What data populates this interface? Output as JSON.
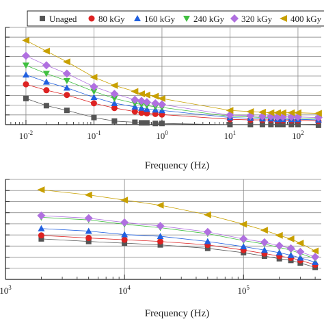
{
  "chart_data": [
    {
      "type": "scatter",
      "xlabel": "Frequency (Hz)",
      "ylabel": "",
      "xscale": "log",
      "xlim": [
        0.005,
        220
      ],
      "ylim": [
        0,
        8.2
      ],
      "grid": true,
      "legend_position": "top",
      "x_ticks": [
        {
          "value": 0.01,
          "base": "10",
          "exp": "-2"
        },
        {
          "value": 0.1,
          "base": "10",
          "exp": "-1"
        },
        {
          "value": 1,
          "base": "10",
          "exp": "0"
        },
        {
          "value": 10,
          "base": "10",
          "exp": "1"
        },
        {
          "value": 100,
          "base": "10",
          "exp": "2"
        }
      ],
      "x": [
        0.01,
        0.02,
        0.04,
        0.1,
        0.2,
        0.4,
        0.5,
        0.6,
        0.8,
        1,
        10,
        20,
        30,
        40,
        50,
        60,
        80,
        100,
        200
      ],
      "series": [
        {
          "name": "Unaged",
          "marker": "square",
          "color": "#555555",
          "values": [
            2.2,
            1.6,
            1.2,
            0.6,
            0.3,
            0.2,
            0.15,
            0.15,
            0.1,
            0.1,
            0,
            0,
            0,
            0,
            0,
            0,
            0,
            0,
            -0.05
          ]
        },
        {
          "name": "80 kGy",
          "marker": "circle",
          "color": "#dd2222",
          "values": [
            3.4,
            2.9,
            2.5,
            1.8,
            1.4,
            1.1,
            1.0,
            0.95,
            0.9,
            0.85,
            0.45,
            0.4,
            0.4,
            0.4,
            0.35,
            0.35,
            0.35,
            0.35,
            0.3
          ]
        },
        {
          "name": "160 kGy",
          "marker": "triangle-up",
          "color": "#2060e0",
          "values": [
            4.2,
            3.6,
            3.1,
            2.3,
            1.8,
            1.5,
            1.4,
            1.3,
            1.25,
            1.2,
            0.6,
            0.55,
            0.5,
            0.5,
            0.45,
            0.45,
            0.45,
            0.45,
            0.4
          ]
        },
        {
          "name": "240 kGy",
          "marker": "triangle-down",
          "color": "#40c040",
          "values": [
            5.0,
            4.3,
            3.7,
            2.8,
            2.2,
            1.8,
            1.7,
            1.6,
            1.5,
            1.45,
            0.7,
            0.65,
            0.6,
            0.6,
            0.55,
            0.55,
            0.55,
            0.55,
            0.5
          ]
        },
        {
          "name": "320 kGy",
          "marker": "diamond",
          "color": "#b070e0",
          "values": [
            5.8,
            5.0,
            4.3,
            3.2,
            2.6,
            2.1,
            2.0,
            1.9,
            1.8,
            1.7,
            0.8,
            0.75,
            0.7,
            0.7,
            0.65,
            0.65,
            0.65,
            0.65,
            0.6
          ]
        },
        {
          "name": "400 kGy",
          "marker": "triangle-left",
          "color": "#c8a000",
          "values": [
            7.1,
            6.2,
            5.3,
            4.0,
            3.3,
            2.8,
            2.6,
            2.5,
            2.4,
            2.2,
            1.2,
            1.1,
            1.05,
            1.0,
            1.0,
            1.0,
            1.0,
            1.0,
            0.95
          ]
        }
      ]
    },
    {
      "type": "scatter",
      "xlabel": "Frequency (Hz)",
      "ylabel": "",
      "xscale": "log",
      "xlim": [
        1000,
        450000
      ],
      "ylim": [
        0,
        5.8
      ],
      "grid": true,
      "x_ticks": [
        {
          "value": 1000,
          "base": "10",
          "exp": "3"
        },
        {
          "value": 10000,
          "base": "10",
          "exp": "4"
        },
        {
          "value": 100000,
          "base": "10",
          "exp": "5"
        }
      ],
      "x": [
        2000,
        5000,
        10000,
        20000,
        50000,
        100000,
        150000,
        200000,
        250000,
        300000,
        400000
      ],
      "series": [
        {
          "name": "Unaged",
          "marker": "square",
          "color": "#555555",
          "values": [
            2.35,
            2.2,
            2.1,
            2.0,
            1.8,
            1.55,
            1.35,
            1.2,
            1.1,
            0.95,
            0.7
          ]
        },
        {
          "name": "80 kGy",
          "marker": "circle",
          "color": "#dd2222",
          "values": [
            2.55,
            2.4,
            2.3,
            2.2,
            2.0,
            1.7,
            1.5,
            1.35,
            1.25,
            1.1,
            0.85
          ]
        },
        {
          "name": "160 kGy",
          "marker": "triangle-up",
          "color": "#2060e0",
          "values": [
            2.95,
            2.8,
            2.6,
            2.5,
            2.2,
            1.9,
            1.7,
            1.55,
            1.4,
            1.25,
            1.0
          ]
        },
        {
          "name": "240 kGy",
          "marker": "triangle-down",
          "color": "#40c040",
          "values": [
            3.6,
            3.45,
            3.2,
            3.0,
            2.65,
            2.25,
            2.05,
            1.85,
            1.7,
            1.5,
            1.2
          ]
        },
        {
          "name": "320 kGy",
          "marker": "diamond",
          "color": "#b070e0",
          "values": [
            3.7,
            3.55,
            3.3,
            3.1,
            2.75,
            2.35,
            2.15,
            1.95,
            1.8,
            1.6,
            1.3
          ]
        },
        {
          "name": "400 kGy",
          "marker": "triangle-left",
          "color": "#c8a000",
          "values": [
            5.2,
            4.9,
            4.6,
            4.3,
            3.75,
            3.2,
            2.85,
            2.55,
            2.35,
            2.1,
            1.65
          ]
        }
      ]
    }
  ]
}
